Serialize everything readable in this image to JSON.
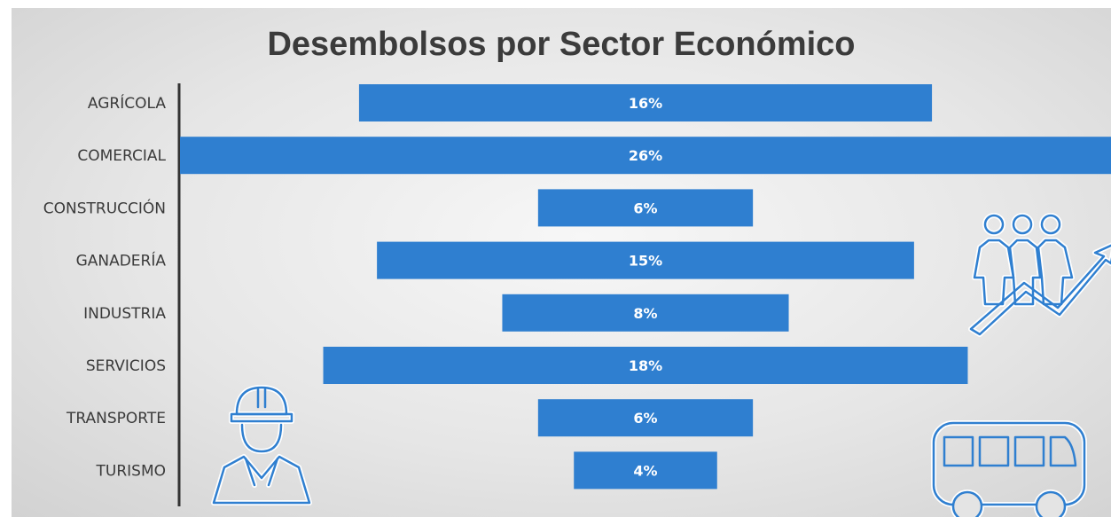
{
  "chart_data": {
    "type": "bar",
    "orientation": "horizontal-centered",
    "title": "Desembolsos por Sector Económico",
    "categories": [
      "AGRÍCOLA",
      "COMERCIAL",
      "CONSTRUCCIÓN",
      "GANADERÍA",
      "INDUSTRIA",
      "SERVICIOS",
      "TRANSPORTE",
      "TURISMO"
    ],
    "values": [
      16,
      26,
      6,
      15,
      8,
      18,
      6,
      4
    ],
    "value_labels": [
      "16%",
      "26%",
      "6%",
      "15%",
      "8%",
      "18%",
      "6%",
      "4%"
    ],
    "unit": "%",
    "bar_color": "#2f7fd0",
    "grid": false,
    "legend": "none"
  },
  "icons": [
    "people-growth-icon",
    "construction-worker-icon",
    "bus-icon"
  ]
}
